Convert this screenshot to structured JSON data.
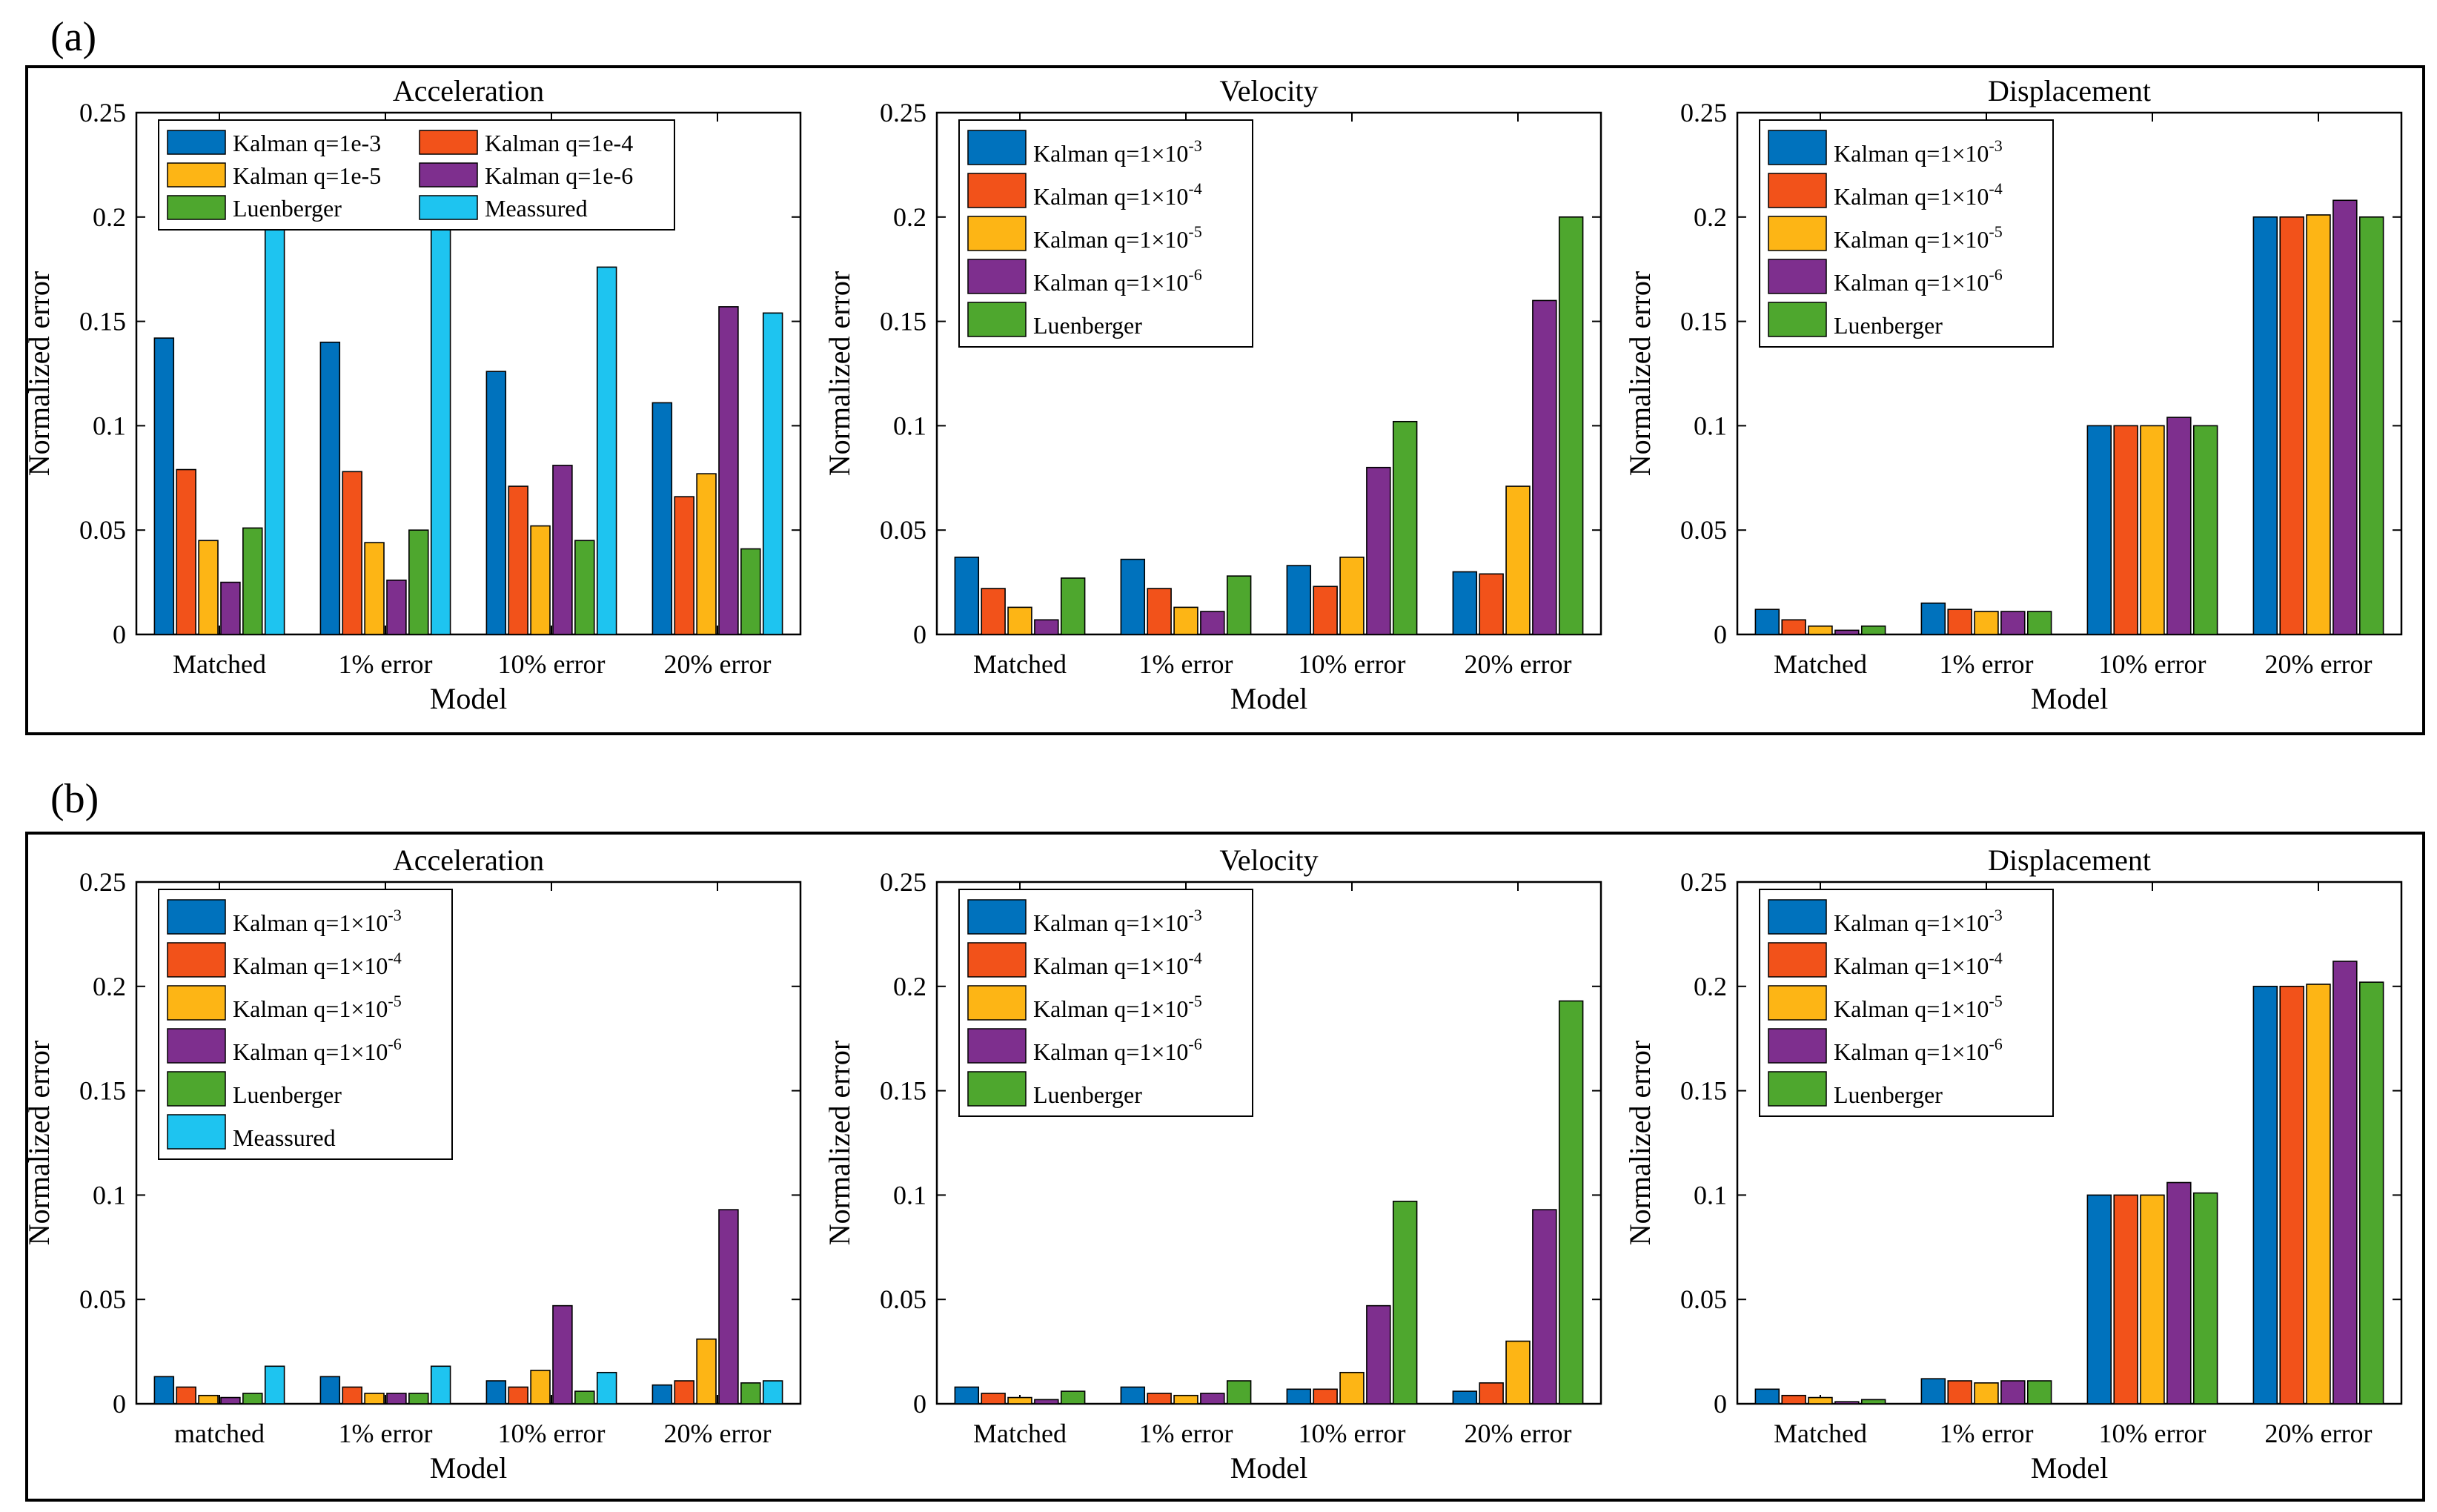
{
  "panel_labels": [
    "(a)",
    "(b)"
  ],
  "colors": {
    "q3": "#0072BD",
    "q4": "#F2521A",
    "q5": "#FDB515",
    "q6": "#7E2F8E",
    "luen": "#4EA72E",
    "meas": "#1EC4F0"
  },
  "chart_data": [
    {
      "type": "bar",
      "title": "Acceleration",
      "xlabel": "Model",
      "ylabel": "Normalized error",
      "ylim": [
        0,
        0.25
      ],
      "yticks": [
        "0",
        "0.05",
        "0.1",
        "0.15",
        "0.2",
        "0.25"
      ],
      "categories": [
        "Matched",
        "1% error",
        "10% error",
        "20% error"
      ],
      "legend_layout": "two-column",
      "series": [
        {
          "name": "Kalman q=1e-3",
          "color_key": "q3",
          "values": [
            0.142,
            0.14,
            0.126,
            0.111
          ]
        },
        {
          "name": "Kalman q=1e-4",
          "color_key": "q4",
          "values": [
            0.079,
            0.078,
            0.071,
            0.066
          ]
        },
        {
          "name": "Kalman q=1e-5",
          "color_key": "q5",
          "values": [
            0.045,
            0.044,
            0.052,
            0.077
          ]
        },
        {
          "name": "Kalman q=1e-6",
          "color_key": "q6",
          "values": [
            0.025,
            0.026,
            0.081,
            0.157
          ]
        },
        {
          "name": "Luenberger",
          "color_key": "luen",
          "values": [
            0.051,
            0.05,
            0.045,
            0.041
          ]
        },
        {
          "name": "Meassured",
          "color_key": "meas",
          "values": [
            0.197,
            0.195,
            0.176,
            0.154
          ]
        }
      ]
    },
    {
      "type": "bar",
      "title": "Velocity",
      "xlabel": "Model",
      "ylabel": "Normalized error",
      "ylim": [
        0,
        0.25
      ],
      "yticks": [
        "0",
        "0.05",
        "0.1",
        "0.15",
        "0.2",
        "0.25"
      ],
      "categories": [
        "Matched",
        "1% error",
        "10% error",
        "20% error"
      ],
      "legend_layout": "one-column",
      "series": [
        {
          "name": "Kalman q=1×10",
          "exp": "-3",
          "color_key": "q3",
          "values": [
            0.037,
            0.036,
            0.033,
            0.03
          ]
        },
        {
          "name": "Kalman q=1×10",
          "exp": "-4",
          "color_key": "q4",
          "values": [
            0.022,
            0.022,
            0.023,
            0.029
          ]
        },
        {
          "name": "Kalman q=1×10",
          "exp": "-5",
          "color_key": "q5",
          "values": [
            0.013,
            0.013,
            0.037,
            0.071
          ]
        },
        {
          "name": "Kalman q=1×10",
          "exp": "-6",
          "color_key": "q6",
          "values": [
            0.007,
            0.011,
            0.08,
            0.16
          ]
        },
        {
          "name": "Luenberger",
          "color_key": "luen",
          "values": [
            0.027,
            0.028,
            0.102,
            0.2
          ]
        }
      ]
    },
    {
      "type": "bar",
      "title": "Displacement",
      "xlabel": "Model",
      "ylabel": "Normalized error",
      "ylim": [
        0,
        0.25
      ],
      "yticks": [
        "0",
        "0.05",
        "0.1",
        "0.15",
        "0.2",
        "0.25"
      ],
      "categories": [
        "Matched",
        "1% error",
        "10% error",
        "20% error"
      ],
      "legend_layout": "one-column",
      "series": [
        {
          "name": "Kalman q=1×10",
          "exp": "-3",
          "color_key": "q3",
          "values": [
            0.012,
            0.015,
            0.1,
            0.2
          ]
        },
        {
          "name": "Kalman q=1×10",
          "exp": "-4",
          "color_key": "q4",
          "values": [
            0.007,
            0.012,
            0.1,
            0.2
          ]
        },
        {
          "name": "Kalman q=1×10",
          "exp": "-5",
          "color_key": "q5",
          "values": [
            0.004,
            0.011,
            0.1,
            0.201
          ]
        },
        {
          "name": "Kalman q=1×10",
          "exp": "-6",
          "color_key": "q6",
          "values": [
            0.002,
            0.011,
            0.104,
            0.208
          ]
        },
        {
          "name": "Luenberger",
          "color_key": "luen",
          "values": [
            0.004,
            0.011,
            0.1,
            0.2
          ]
        }
      ]
    },
    {
      "type": "bar",
      "title": "Acceleration",
      "xlabel": "Model",
      "ylabel": "Normalized error",
      "ylim": [
        0,
        0.25
      ],
      "yticks": [
        "0",
        "0.05",
        "0.1",
        "0.15",
        "0.2",
        "0.25"
      ],
      "categories": [
        "matched",
        "1% error",
        "10% error",
        "20% error"
      ],
      "legend_layout": "one-column",
      "series": [
        {
          "name": "Kalman q=1×10",
          "exp": "-3",
          "color_key": "q3",
          "values": [
            0.013,
            0.013,
            0.011,
            0.009
          ]
        },
        {
          "name": "Kalman q=1×10",
          "exp": "-4",
          "color_key": "q4",
          "values": [
            0.008,
            0.008,
            0.008,
            0.011
          ]
        },
        {
          "name": "Kalman q=1×10",
          "exp": "-5",
          "color_key": "q5",
          "values": [
            0.004,
            0.005,
            0.016,
            0.031
          ]
        },
        {
          "name": "Kalman q=1×10",
          "exp": "-6",
          "color_key": "q6",
          "values": [
            0.003,
            0.005,
            0.047,
            0.093
          ]
        },
        {
          "name": "Luenberger",
          "color_key": "luen",
          "values": [
            0.005,
            0.005,
            0.006,
            0.01
          ]
        },
        {
          "name": "Meassured",
          "color_key": "meas",
          "values": [
            0.018,
            0.018,
            0.015,
            0.011
          ]
        }
      ]
    },
    {
      "type": "bar",
      "title": "Velocity",
      "xlabel": "Model",
      "ylabel": "Normalized error",
      "ylim": [
        0,
        0.25
      ],
      "yticks": [
        "0",
        "0.05",
        "0.1",
        "0.15",
        "0.2",
        "0.25"
      ],
      "categories": [
        "Matched",
        "1% error",
        "10% error",
        "20% error"
      ],
      "legend_layout": "one-column",
      "series": [
        {
          "name": "Kalman q=1×10",
          "exp": "-3",
          "color_key": "q3",
          "values": [
            0.008,
            0.008,
            0.007,
            0.006
          ]
        },
        {
          "name": "Kalman q=1×10",
          "exp": "-4",
          "color_key": "q4",
          "values": [
            0.005,
            0.005,
            0.007,
            0.01
          ]
        },
        {
          "name": "Kalman q=1×10",
          "exp": "-5",
          "color_key": "q5",
          "values": [
            0.003,
            0.004,
            0.015,
            0.03
          ]
        },
        {
          "name": "Kalman q=1×10",
          "exp": "-6",
          "color_key": "q6",
          "values": [
            0.002,
            0.005,
            0.047,
            0.093
          ]
        },
        {
          "name": "Luenberger",
          "color_key": "luen",
          "values": [
            0.006,
            0.011,
            0.097,
            0.193
          ]
        }
      ]
    },
    {
      "type": "bar",
      "title": "Displacement",
      "xlabel": "Model",
      "ylabel": "Normalized error",
      "ylim": [
        0,
        0.25
      ],
      "yticks": [
        "0",
        "0.05",
        "0.1",
        "0.15",
        "0.2",
        "0.25"
      ],
      "categories": [
        "Matched",
        "1% error",
        "10% error",
        "20% error"
      ],
      "legend_layout": "one-column",
      "series": [
        {
          "name": "Kalman q=1×10",
          "exp": "-3",
          "color_key": "q3",
          "values": [
            0.007,
            0.012,
            0.1,
            0.2
          ]
        },
        {
          "name": "Kalman q=1×10",
          "exp": "-4",
          "color_key": "q4",
          "values": [
            0.004,
            0.011,
            0.1,
            0.2
          ]
        },
        {
          "name": "Kalman q=1×10",
          "exp": "-5",
          "color_key": "q5",
          "values": [
            0.003,
            0.01,
            0.1,
            0.201
          ]
        },
        {
          "name": "Kalman q=1×10",
          "exp": "-6",
          "color_key": "q6",
          "values": [
            0.001,
            0.011,
            0.106,
            0.212
          ]
        },
        {
          "name": "Luenberger",
          "color_key": "luen",
          "values": [
            0.002,
            0.011,
            0.101,
            0.202
          ]
        }
      ]
    }
  ]
}
